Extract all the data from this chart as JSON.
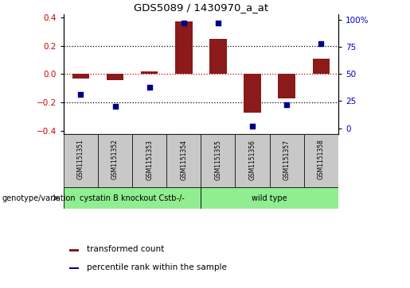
{
  "title": "GDS5089 / 1430970_a_at",
  "samples": [
    "GSM1151351",
    "GSM1151352",
    "GSM1151353",
    "GSM1151354",
    "GSM1151355",
    "GSM1151356",
    "GSM1151357",
    "GSM1151358"
  ],
  "red_bars": [
    -0.03,
    -0.04,
    0.02,
    0.37,
    0.25,
    -0.27,
    -0.17,
    0.11
  ],
  "blue_dots": [
    31,
    20,
    38,
    97,
    97,
    2,
    22,
    78
  ],
  "ylim_left": [
    -0.42,
    0.42
  ],
  "ylim_right": [
    -5.25,
    105
  ],
  "yticks_left": [
    -0.4,
    -0.2,
    0.0,
    0.2,
    0.4
  ],
  "yticks_right": [
    0,
    25,
    50,
    75,
    100
  ],
  "ytick_labels_right": [
    "0",
    "25",
    "50",
    "75",
    "100%"
  ],
  "hlines_dotted": [
    0.2,
    -0.2
  ],
  "hline_zero": 0.0,
  "group1_label": "cystatin B knockout Cstb-/-",
  "group2_label": "wild type",
  "group1_count": 4,
  "group2_count": 4,
  "legend_red": "transformed count",
  "legend_blue": "percentile rank within the sample",
  "genotype_label": "genotype/variation",
  "bar_color": "#8B1A1A",
  "dot_color": "#00008B",
  "group1_color": "#90EE90",
  "group2_color": "#90EE90",
  "zero_line_color": "#CC0000",
  "bar_width": 0.5,
  "left_tick_color": "#CC0000",
  "right_tick_color": "#0000CC",
  "bg_color": "#FFFFFF",
  "plot_bg": "#FFFFFF",
  "sample_box_color": "#C8C8C8"
}
